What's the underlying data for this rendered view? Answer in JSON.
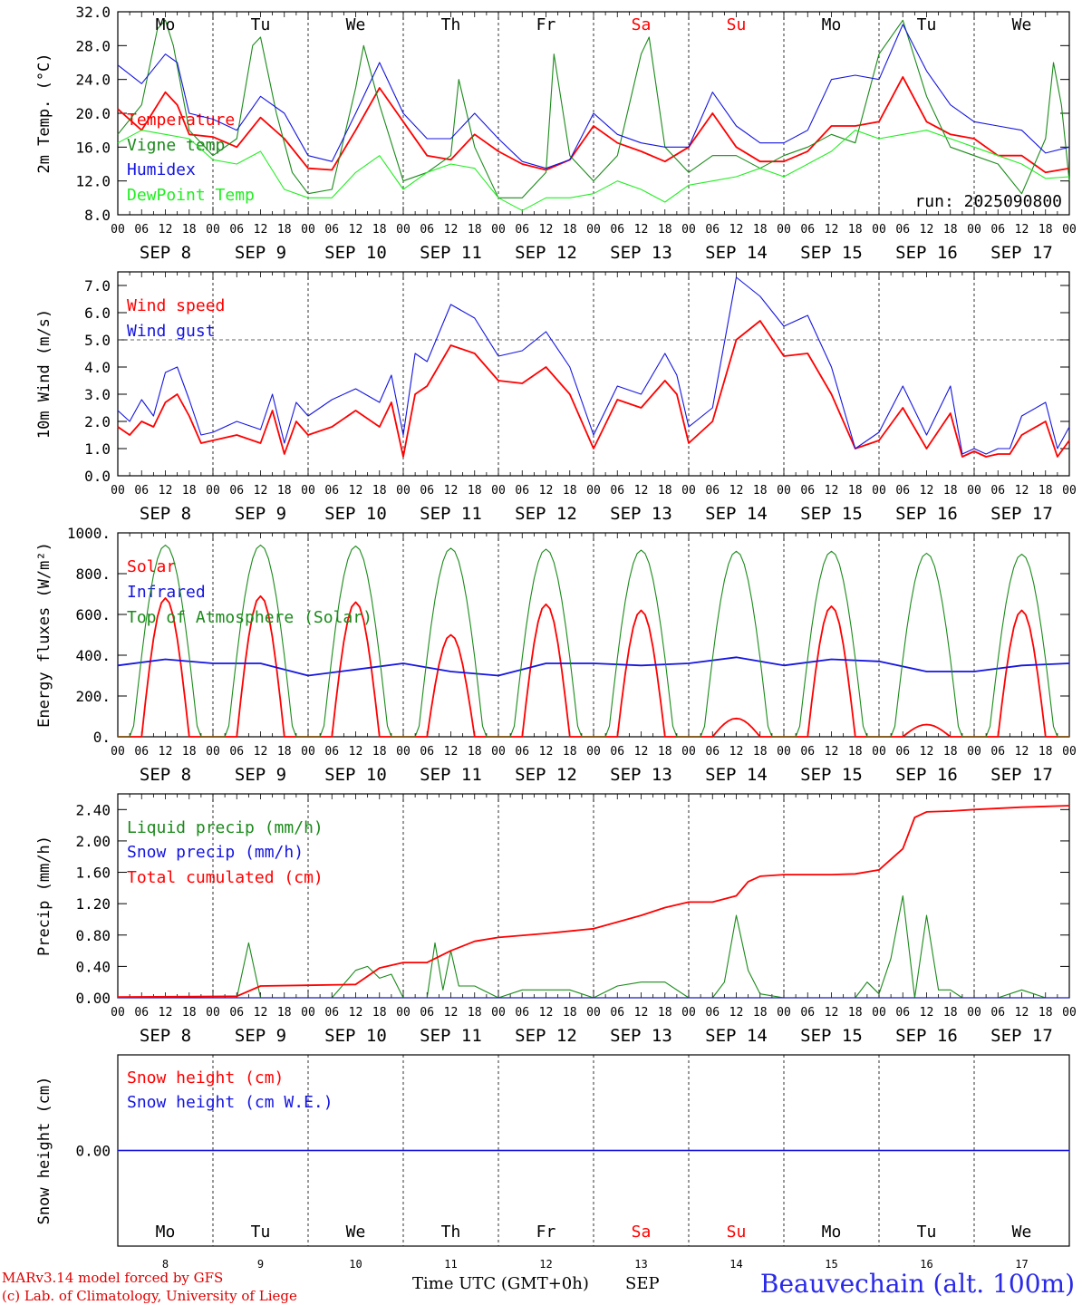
{
  "colors": {
    "red": "#ff0000",
    "green": "#1a8a1a",
    "blue": "#1515e0",
    "lightgreen": "#22ee22",
    "weekend": "#ff0000",
    "axis": "#000000"
  },
  "days": {
    "weekday": [
      "Mo",
      "Tu",
      "We",
      "Th",
      "Fr",
      "Sa",
      "Su",
      "Mo",
      "Tu",
      "We"
    ],
    "weekend": [
      false,
      false,
      false,
      false,
      false,
      true,
      true,
      false,
      false,
      false
    ],
    "labels": [
      "SEP  8",
      "SEP  9",
      "SEP 10",
      "SEP 11",
      "SEP 12",
      "SEP 13",
      "SEP 14",
      "SEP 15",
      "SEP 16",
      "SEP 17"
    ],
    "numbers": [
      "8",
      "9",
      "10",
      "11",
      "12",
      "13",
      "14",
      "15",
      "16",
      "17"
    ],
    "hour_ticks": [
      "00",
      "06",
      "12",
      "18"
    ],
    "final_tick": "00"
  },
  "run_label": "run: 2025090800",
  "footer": {
    "model": "MARv3.14 model forced by GFS",
    "lab": "(c) Lab. of Climatology, University of Liege",
    "time_label": "Time UTC (GMT+0h)",
    "month": "SEP",
    "station": "Beauvechain (alt. 100m)"
  },
  "chart_data": [
    {
      "type": "line",
      "ylabel": "2m Temp. (°C)",
      "ylim": [
        8,
        32
      ],
      "yticks": [
        "8.0",
        "12.0",
        "16.0",
        "20.0",
        "24.0",
        "28.0",
        "32.0"
      ],
      "x_unit": "hours from 2025-09-08 00 UTC",
      "series": [
        {
          "name": "Temperature",
          "color": "red",
          "x": [
            0,
            6,
            12,
            15,
            18,
            24,
            30,
            36,
            42,
            48,
            54,
            60,
            66,
            72,
            78,
            84,
            90,
            96,
            102,
            108,
            114,
            120,
            126,
            132,
            138,
            144,
            150,
            156,
            162,
            168,
            174,
            180,
            186,
            192,
            198,
            204,
            210,
            216,
            222,
            228,
            234,
            240
          ],
          "y": [
            20.5,
            18,
            22.5,
            21,
            17.5,
            17.2,
            16,
            19.5,
            17,
            13.5,
            13.3,
            18,
            23,
            19,
            15,
            14.5,
            17.5,
            15.5,
            14,
            13.3,
            14.5,
            18.5,
            16.5,
            15.5,
            14.3,
            16,
            20,
            16,
            14.3,
            14.3,
            15.5,
            18.5,
            18.5,
            19,
            24.3,
            19,
            17.5,
            17,
            15,
            15,
            13,
            13.5
          ]
        },
        {
          "name": "Vigne temp",
          "color": "green",
          "x": [
            0,
            6,
            10,
            12,
            14,
            18,
            24,
            30,
            34,
            36,
            40,
            44,
            48,
            54,
            60,
            62,
            66,
            72,
            78,
            84,
            86,
            90,
            96,
            102,
            108,
            110,
            114,
            120,
            126,
            132,
            134,
            138,
            144,
            150,
            156,
            162,
            168,
            174,
            180,
            186,
            192,
            198,
            204,
            210,
            216,
            222,
            228,
            234,
            236,
            238,
            240
          ],
          "y": [
            17.5,
            21,
            30,
            31,
            28,
            18,
            15,
            17,
            28,
            29,
            20,
            13,
            10.5,
            11,
            23,
            28,
            21,
            12,
            13,
            15,
            24,
            16,
            10,
            10,
            13,
            27,
            15,
            12,
            15,
            27,
            29,
            16,
            13,
            15,
            15,
            13.5,
            15,
            16,
            17.5,
            16.5,
            27,
            31,
            22,
            16,
            15,
            14,
            10.5,
            17,
            26,
            21,
            12
          ]
        },
        {
          "name": "Humidex",
          "color": "blue",
          "x": [
            0,
            6,
            12,
            15,
            18,
            24,
            30,
            36,
            42,
            48,
            54,
            60,
            66,
            72,
            78,
            84,
            90,
            96,
            102,
            108,
            114,
            120,
            126,
            132,
            138,
            144,
            150,
            156,
            162,
            168,
            174,
            180,
            186,
            192,
            198,
            204,
            210,
            216,
            222,
            228,
            234,
            240
          ],
          "y": [
            25.7,
            23.5,
            27,
            26,
            20,
            19.3,
            18,
            22,
            20,
            15,
            14.3,
            20,
            26,
            20,
            17,
            17,
            20,
            17,
            14.3,
            13.5,
            14.5,
            20,
            17.5,
            16.5,
            16,
            16,
            22.5,
            18.5,
            16.5,
            16.5,
            18,
            24,
            24.5,
            24,
            30.5,
            25,
            21,
            19,
            18.5,
            18,
            15.3,
            16
          ]
        },
        {
          "name": "DewPoint Temp",
          "color": "lightgreen",
          "x": [
            0,
            6,
            12,
            18,
            24,
            30,
            36,
            42,
            48,
            54,
            60,
            66,
            72,
            78,
            84,
            90,
            96,
            102,
            108,
            114,
            120,
            126,
            132,
            138,
            144,
            150,
            156,
            162,
            168,
            174,
            180,
            186,
            192,
            198,
            204,
            210,
            216,
            222,
            228,
            234,
            240
          ],
          "y": [
            16.5,
            18,
            17.5,
            17,
            14.5,
            14,
            15.5,
            11,
            10,
            10,
            13,
            15,
            11,
            13,
            14,
            13.5,
            10,
            8.5,
            10,
            10,
            10.5,
            12,
            11,
            9.5,
            11.5,
            12,
            12.5,
            13.5,
            12.5,
            14,
            15.5,
            18,
            17,
            17.5,
            18,
            17,
            16,
            15,
            14,
            12.3,
            12.5
          ]
        }
      ]
    },
    {
      "type": "line",
      "ylabel": "10m Wind (m/s)",
      "ylim": [
        0,
        7.5
      ],
      "yticks": [
        "0.0",
        "1.0",
        "2.0",
        "3.0",
        "4.0",
        "5.0",
        "6.0",
        "7.0"
      ],
      "reference_line": 5,
      "series": [
        {
          "name": "Wind speed",
          "color": "red",
          "x": [
            0,
            3,
            6,
            9,
            12,
            15,
            18,
            21,
            24,
            30,
            36,
            39,
            42,
            45,
            48,
            54,
            60,
            66,
            69,
            72,
            75,
            78,
            84,
            90,
            96,
            102,
            108,
            114,
            120,
            126,
            132,
            138,
            141,
            144,
            150,
            156,
            162,
            168,
            174,
            180,
            186,
            192,
            198,
            204,
            210,
            213,
            216,
            219,
            222,
            225,
            228,
            234,
            237,
            240
          ],
          "y": [
            1.8,
            1.5,
            2,
            1.8,
            2.7,
            3,
            2.2,
            1.2,
            1.3,
            1.5,
            1.2,
            2.4,
            0.8,
            2,
            1.5,
            1.8,
            2.4,
            1.8,
            2.7,
            0.7,
            3,
            3.3,
            4.8,
            4.5,
            3.5,
            3.4,
            4,
            3,
            1,
            2.8,
            2.5,
            3.5,
            3,
            1.2,
            2,
            5,
            5.7,
            4.4,
            4.5,
            3,
            1,
            1.3,
            2.5,
            1,
            2.3,
            0.7,
            0.9,
            0.7,
            0.8,
            0.8,
            1.5,
            2,
            0.7,
            1.3
          ]
        },
        {
          "name": "Wind gust",
          "color": "blue",
          "x": [
            0,
            3,
            6,
            9,
            12,
            15,
            18,
            21,
            24,
            30,
            36,
            39,
            42,
            45,
            48,
            54,
            60,
            66,
            69,
            72,
            75,
            78,
            84,
            90,
            96,
            102,
            108,
            114,
            120,
            126,
            132,
            138,
            141,
            144,
            150,
            156,
            162,
            168,
            174,
            180,
            186,
            192,
            198,
            204,
            210,
            213,
            216,
            219,
            222,
            225,
            228,
            234,
            237,
            240
          ],
          "y": [
            2.4,
            2,
            2.8,
            2.2,
            3.8,
            4,
            2.8,
            1.5,
            1.6,
            2,
            1.7,
            3,
            1.2,
            2.7,
            2.2,
            2.8,
            3.2,
            2.7,
            3.7,
            1.5,
            4.5,
            4.2,
            6.3,
            5.8,
            4.4,
            4.6,
            5.3,
            4,
            1.5,
            3.3,
            3,
            4.5,
            3.7,
            1.8,
            2.5,
            7.3,
            6.6,
            5.5,
            5.9,
            4,
            1,
            1.6,
            3.3,
            1.5,
            3.3,
            0.8,
            1,
            0.8,
            1,
            1,
            2.2,
            2.7,
            1,
            1.8
          ]
        }
      ]
    },
    {
      "type": "line",
      "ylabel": "Energy fluxes (W/m²)",
      "ylim": [
        0,
        1000
      ],
      "yticks": [
        "0.",
        "200.",
        "400.",
        "600.",
        "800.",
        "1000."
      ],
      "series": [
        {
          "name": "Solar",
          "color": "red",
          "peaks": [
            [
              12,
              680
            ],
            [
              36,
              690
            ],
            [
              60,
              660
            ],
            [
              84,
              500
            ],
            [
              108,
              650
            ],
            [
              132,
              620
            ],
            [
              156,
              90
            ],
            [
              180,
              640
            ],
            [
              204,
              60
            ],
            [
              228,
              620
            ]
          ]
        },
        {
          "name": "Infrared",
          "color": "blue",
          "x": [
            0,
            12,
            24,
            36,
            48,
            60,
            72,
            84,
            96,
            108,
            120,
            132,
            144,
            156,
            168,
            180,
            192,
            204,
            216,
            228,
            240
          ],
          "y": [
            350,
            380,
            360,
            360,
            300,
            330,
            360,
            320,
            300,
            360,
            360,
            350,
            360,
            390,
            350,
            380,
            370,
            320,
            320,
            350,
            360
          ]
        },
        {
          "name": "Top of Atmosphere (Solar)",
          "color": "green",
          "peaks": [
            [
              12,
              940
            ],
            [
              36,
              940
            ],
            [
              60,
              935
            ],
            [
              84,
              925
            ],
            [
              108,
              920
            ],
            [
              132,
              915
            ],
            [
              156,
              910
            ],
            [
              180,
              910
            ],
            [
              204,
              900
            ],
            [
              228,
              895
            ]
          ]
        }
      ]
    },
    {
      "type": "line",
      "ylabel": "Precip (mm/h)",
      "ylim": [
        0,
        2.6
      ],
      "yticks": [
        "0.00",
        "0.40",
        "0.80",
        "1.20",
        "1.60",
        "2.00",
        "2.40"
      ],
      "series": [
        {
          "name": "Liquid precip (mm/h)",
          "color": "green",
          "x": [
            0,
            30,
            33,
            36,
            39,
            48,
            54,
            60,
            63,
            66,
            69,
            72,
            78,
            80,
            82,
            84,
            86,
            90,
            96,
            102,
            108,
            114,
            120,
            126,
            132,
            134,
            138,
            144,
            150,
            153,
            156,
            159,
            162,
            168,
            174,
            180,
            186,
            189,
            192,
            195,
            198,
            201,
            204,
            207,
            210,
            213,
            216,
            222,
            228,
            234,
            240
          ],
          "y": [
            0,
            0,
            0.7,
            0,
            0,
            0,
            0,
            0.35,
            0.4,
            0.25,
            0.3,
            0,
            0,
            0.7,
            0.1,
            0.6,
            0.15,
            0.15,
            0,
            0.1,
            0.1,
            0.1,
            0,
            0.15,
            0.2,
            0.2,
            0.2,
            0,
            0,
            0.2,
            1.05,
            0.35,
            0.05,
            0,
            0,
            0,
            0,
            0.2,
            0.05,
            0.5,
            1.3,
            0,
            1.05,
            0.1,
            0.1,
            0,
            0,
            0,
            0.1,
            0,
            0
          ]
        },
        {
          "name": "Snow precip (mm/h)",
          "color": "blue",
          "x": [
            0,
            240
          ],
          "y": [
            0,
            0
          ]
        },
        {
          "name": "Total cumulated (cm)",
          "color": "red",
          "x": [
            0,
            30,
            36,
            48,
            60,
            66,
            72,
            78,
            84,
            90,
            96,
            108,
            120,
            132,
            138,
            144,
            150,
            156,
            159,
            162,
            168,
            180,
            186,
            192,
            198,
            201,
            204,
            210,
            216,
            228,
            240
          ],
          "y": [
            0.01,
            0.02,
            0.15,
            0.16,
            0.17,
            0.38,
            0.45,
            0.45,
            0.6,
            0.72,
            0.77,
            0.82,
            0.88,
            1.05,
            1.15,
            1.22,
            1.22,
            1.3,
            1.48,
            1.55,
            1.57,
            1.57,
            1.58,
            1.63,
            1.9,
            2.3,
            2.37,
            2.38,
            2.4,
            2.43,
            2.45
          ]
        }
      ]
    },
    {
      "type": "line",
      "ylabel": "Snow height (cm)",
      "yticks": [
        "0.00"
      ],
      "series": [
        {
          "name": "Snow height (cm)",
          "color": "red",
          "x": [
            0,
            240
          ],
          "y": [
            0,
            0
          ]
        },
        {
          "name": "Snow height (cm W.E.)",
          "color": "blue",
          "x": [
            0,
            240
          ],
          "y": [
            0,
            0
          ]
        }
      ]
    }
  ]
}
